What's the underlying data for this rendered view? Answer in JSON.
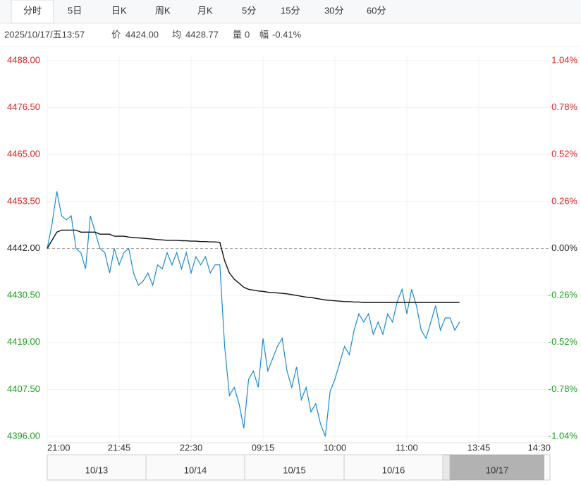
{
  "tabs": [
    "分时",
    "5日",
    "日K",
    "周K",
    "月K",
    "5分",
    "15分",
    "30分",
    "60分"
  ],
  "info": {
    "datetime": "2025/10/17/五13:57",
    "price_label": "价",
    "price": "4424.00",
    "avg_label": "均",
    "avg": "4428.77",
    "vol_label": "量",
    "vol": "0",
    "change_label": "幅",
    "change": "-0.41%"
  },
  "navigator": {
    "dates": [
      "10/13",
      "10/14",
      "10/15",
      "10/16",
      "10/17"
    ]
  },
  "chart_data": {
    "type": "line",
    "categories": [
      "21:00",
      null,
      null,
      null,
      null,
      null,
      null,
      null,
      null,
      null,
      null,
      null,
      null,
      null,
      null,
      "21:45",
      null,
      null,
      null,
      null,
      null,
      null,
      null,
      null,
      null,
      null,
      null,
      null,
      null,
      null,
      "22:30",
      null,
      null,
      null,
      null,
      null,
      null,
      null,
      null,
      null,
      null,
      null,
      null,
      null,
      null,
      "09:15",
      null,
      null,
      null,
      null,
      null,
      null,
      null,
      null,
      null,
      null,
      null,
      null,
      null,
      null,
      "10:00",
      null,
      null,
      null,
      null,
      null,
      null,
      null,
      null,
      null,
      null,
      null,
      null,
      null,
      null,
      "11:00",
      null,
      null,
      null,
      null,
      null,
      null,
      null,
      null,
      null,
      null,
      null,
      null,
      null,
      null,
      "13:45",
      null,
      null,
      null,
      null,
      null,
      null,
      null,
      null,
      null,
      null,
      null,
      null,
      null,
      null,
      "14:30"
    ],
    "series": [
      {
        "name": "价",
        "color": "#1b8bd1",
        "values": [
          4442,
          4448,
          4456,
          4450,
          4449,
          4450,
          4442,
          4441,
          4437,
          4450,
          4446,
          4442,
          4441,
          4436,
          4442,
          4438,
          4441,
          4442,
          4436,
          4433,
          4434,
          4436,
          4433,
          4438,
          4437,
          4441,
          4438,
          4441,
          4437,
          4441,
          4436,
          4440,
          4438,
          4440,
          4436,
          4438,
          4438,
          4418,
          4406,
          4408,
          4404,
          4398,
          4410,
          4412,
          4408,
          4420,
          4412,
          4415,
          4418,
          4420,
          4412,
          4408,
          4413,
          4405,
          4408,
          4402,
          4404,
          4399,
          4396,
          4407,
          4410,
          4414,
          4418,
          4416,
          4422,
          4426,
          4424,
          4426,
          4421,
          4424,
          4421,
          4426,
          4424,
          4429,
          4432,
          4426,
          4432,
          4428,
          4422,
          4420,
          4424,
          4428,
          4422,
          4425,
          4425,
          4422,
          4424,
          null,
          null,
          null,
          null,
          null,
          null,
          null,
          null,
          null,
          null,
          null,
          null,
          null,
          null,
          null,
          null,
          null,
          null,
          null
        ]
      },
      {
        "name": "均",
        "color": "#111111",
        "values": [
          4442,
          4444,
          4446,
          4446.5,
          4446.5,
          4446.5,
          4446.5,
          4446,
          4446,
          4446,
          4446,
          4445.5,
          4445.5,
          4445.5,
          4445,
          4445,
          4445,
          4444.8,
          4444.7,
          4444.6,
          4444.5,
          4444.4,
          4444.3,
          4444.2,
          4444.1,
          4444,
          4444,
          4444,
          4443.9,
          4443.9,
          4443.8,
          4443.8,
          4443.7,
          4443.7,
          4443.6,
          4443.6,
          4443.5,
          4439,
          4436,
          4434.5,
          4433.5,
          4432.5,
          4432,
          4431.8,
          4431.6,
          4431.5,
          4431.3,
          4431.2,
          4431.1,
          4431,
          4430.9,
          4430.7,
          4430.5,
          4430.3,
          4430.1,
          4430,
          4429.8,
          4429.6,
          4429.4,
          4429.3,
          4429.2,
          4429.1,
          4429,
          4429,
          4428.9,
          4428.9,
          4428.8,
          4428.8,
          4428.8,
          4428.8,
          4428.8,
          4428.8,
          4428.8,
          4428.8,
          4428.8,
          4428.8,
          4428.8,
          4428.8,
          4428.8,
          4428.8,
          4428.8,
          4428.8,
          4428.8,
          4428.8,
          4428.8,
          4428.8,
          4428.77,
          null,
          null,
          null,
          null,
          null,
          null,
          null,
          null,
          null,
          null,
          null,
          null,
          null,
          null,
          null,
          null,
          null,
          null,
          null
        ]
      }
    ],
    "base": 4442,
    "ylim": [
      4396,
      4488
    ],
    "yticks": [
      {
        "value": 4396,
        "label": "4396.00"
      },
      {
        "value": 4407.5,
        "label": "4407.50"
      },
      {
        "value": 4419,
        "label": "4419.00"
      },
      {
        "value": 4430.5,
        "label": "4430.50"
      },
      {
        "value": 4442,
        "label": "4442.00"
      },
      {
        "value": 4453.5,
        "label": "4453.50"
      },
      {
        "value": 4465,
        "label": "4465.00"
      },
      {
        "value": 4476.5,
        "label": "4476.50"
      },
      {
        "value": 4488,
        "label": "4488.00"
      }
    ],
    "y2lim": [
      -1.04,
      1.04
    ],
    "y2ticks": [
      {
        "value": -1.04,
        "label": "-1.04%"
      },
      {
        "value": -0.78,
        "label": "-0.78%"
      },
      {
        "value": -0.52,
        "label": "-0.52%"
      },
      {
        "value": -0.26,
        "label": "-0.26%"
      },
      {
        "value": 0,
        "label": "0.00%"
      },
      {
        "value": 0.26,
        "label": "0.26%"
      },
      {
        "value": 0.52,
        "label": "0.52%"
      },
      {
        "value": 0.78,
        "label": "0.78%"
      },
      {
        "value": 1.04,
        "label": "1.04%"
      }
    ],
    "grid": true,
    "up_color": "#e02020",
    "down_color": "#1aa01a"
  }
}
